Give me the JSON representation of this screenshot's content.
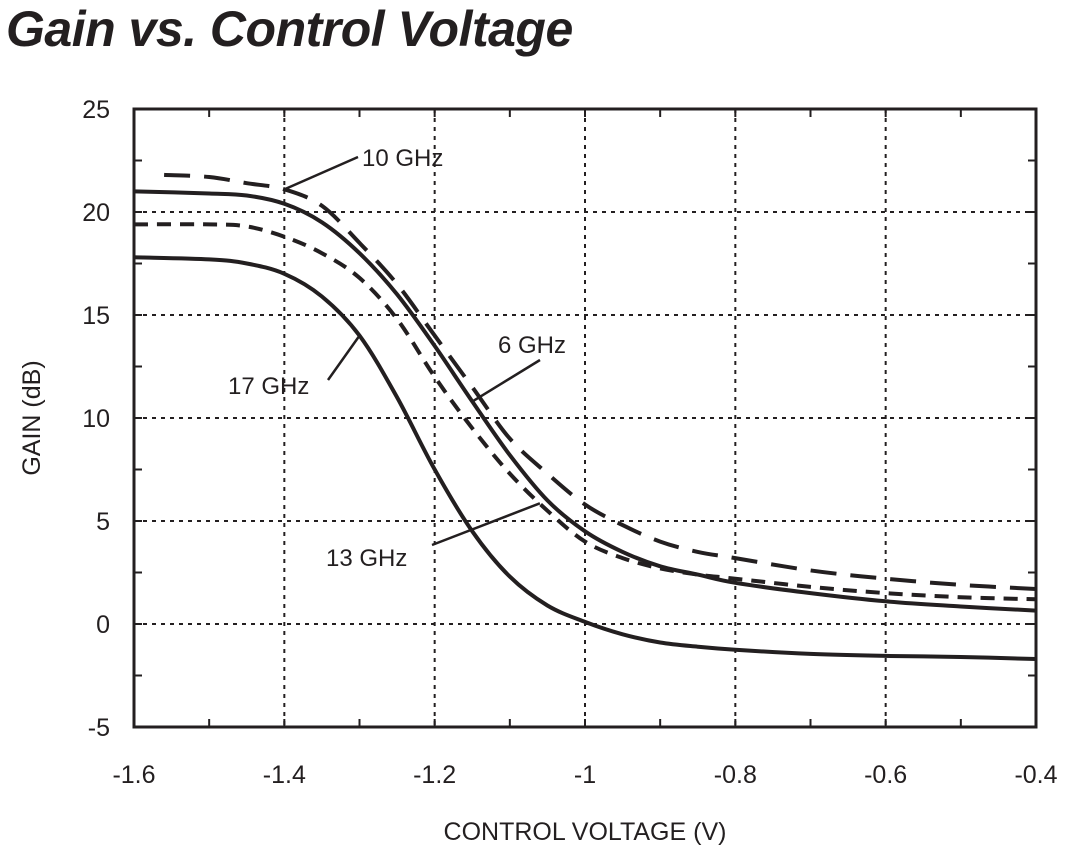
{
  "chart_data": {
    "type": "line",
    "title": "Gain vs. Control Voltage",
    "xlabel": "CONTROL VOLTAGE (V)",
    "ylabel": "GAIN (dB)",
    "xlim": [
      -1.6,
      -0.4
    ],
    "ylim": [
      -5,
      25
    ],
    "grid": true,
    "x_ticks": [
      -1.6,
      -1.4,
      -1.2,
      -1,
      -0.8,
      -0.6,
      -0.4
    ],
    "x_tick_labels": [
      "-1.6",
      "-1.4",
      "-1.2",
      "-1",
      "-0.8",
      "-0.6",
      "-0.4"
    ],
    "y_ticks": [
      -5,
      0,
      5,
      10,
      15,
      20,
      25
    ],
    "y_tick_labels": [
      "-5",
      "0",
      "5",
      "10",
      "15",
      "20",
      "25"
    ],
    "series": [
      {
        "name": "6 GHz",
        "style": "solid",
        "x": [
          -1.6,
          -1.5,
          -1.45,
          -1.4,
          -1.35,
          -1.3,
          -1.25,
          -1.2,
          -1.15,
          -1.1,
          -1.05,
          -1.0,
          -0.95,
          -0.9,
          -0.85,
          -0.8,
          -0.7,
          -0.6,
          -0.5,
          -0.4
        ],
        "y": [
          21.0,
          20.9,
          20.8,
          20.4,
          19.5,
          18.0,
          16.0,
          13.5,
          10.8,
          8.2,
          6.0,
          4.5,
          3.5,
          2.8,
          2.4,
          2.0,
          1.5,
          1.1,
          0.85,
          0.65
        ]
      },
      {
        "name": "10 GHz",
        "style": "long-dash",
        "x": [
          -1.56,
          -1.5,
          -1.45,
          -1.4,
          -1.35,
          -1.3,
          -1.25,
          -1.2,
          -1.15,
          -1.1,
          -1.05,
          -1.0,
          -0.95,
          -0.9,
          -0.85,
          -0.8,
          -0.7,
          -0.6,
          -0.5,
          -0.4
        ],
        "y": [
          21.8,
          21.7,
          21.4,
          21.1,
          20.3,
          18.5,
          16.5,
          14.0,
          11.5,
          9.0,
          7.3,
          5.8,
          4.8,
          4.0,
          3.5,
          3.2,
          2.6,
          2.2,
          1.9,
          1.7
        ]
      },
      {
        "name": "13 GHz",
        "style": "short-dash",
        "x": [
          -1.6,
          -1.5,
          -1.45,
          -1.4,
          -1.35,
          -1.3,
          -1.25,
          -1.2,
          -1.15,
          -1.1,
          -1.05,
          -1.0,
          -0.95,
          -0.9,
          -0.85,
          -0.8,
          -0.7,
          -0.6,
          -0.5,
          -0.4
        ],
        "y": [
          19.4,
          19.4,
          19.3,
          18.8,
          18.0,
          16.8,
          14.8,
          12.0,
          9.5,
          7.3,
          5.5,
          4.0,
          3.2,
          2.7,
          2.4,
          2.2,
          1.8,
          1.5,
          1.3,
          1.2
        ]
      },
      {
        "name": "17 GHz",
        "style": "solid",
        "x": [
          -1.6,
          -1.5,
          -1.45,
          -1.4,
          -1.35,
          -1.3,
          -1.25,
          -1.2,
          -1.15,
          -1.1,
          -1.05,
          -1.0,
          -0.95,
          -0.9,
          -0.85,
          -0.8,
          -0.7,
          -0.6,
          -0.5,
          -0.4
        ],
        "y": [
          17.8,
          17.7,
          17.5,
          17.0,
          15.9,
          14.0,
          11.0,
          7.5,
          4.5,
          2.3,
          0.9,
          0.1,
          -0.5,
          -0.9,
          -1.1,
          -1.25,
          -1.45,
          -1.55,
          -1.6,
          -1.7
        ]
      }
    ],
    "annotations": [
      {
        "text": "10 GHz",
        "series": "10 GHz"
      },
      {
        "text": "6 GHz",
        "series": "6 GHz"
      },
      {
        "text": "17 GHz",
        "series": "17 GHz"
      },
      {
        "text": "13 GHz",
        "series": "13 GHz"
      }
    ]
  }
}
